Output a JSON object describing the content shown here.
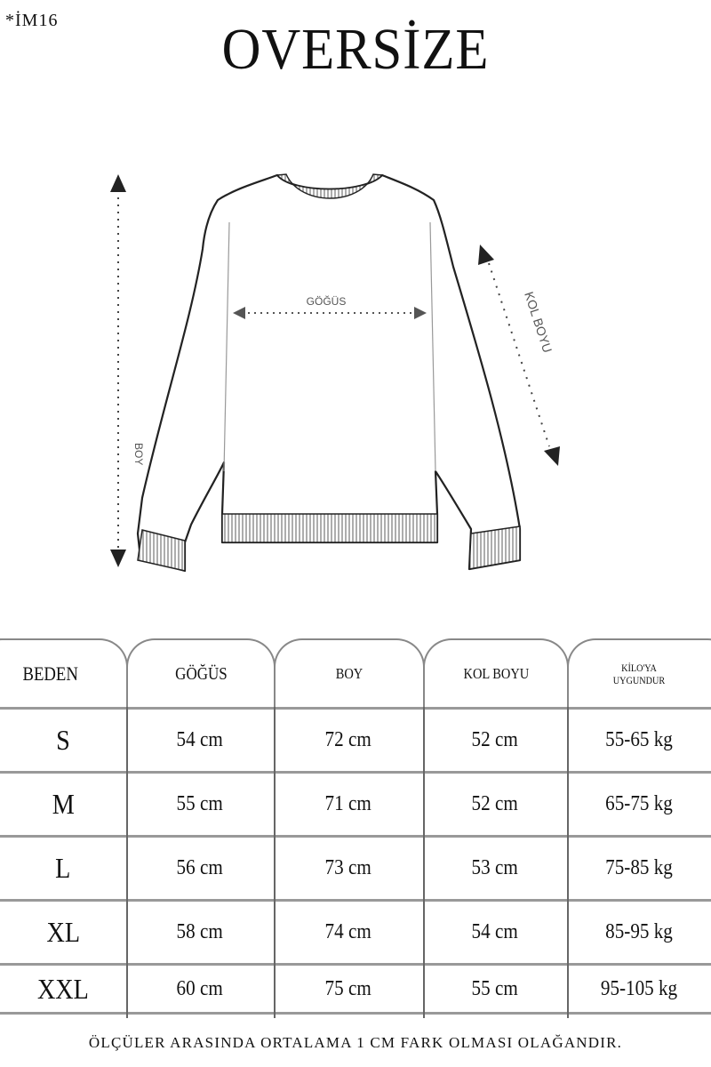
{
  "product_code": "*İM16",
  "title": "OVERSİZE",
  "diagram": {
    "chest_label": "GÖĞÜS",
    "length_label": "BOY",
    "sleeve_label": "KOL BOYU"
  },
  "table": {
    "headers": [
      "BEDEN",
      "GÖĞÜS",
      "BOY",
      "KOL BOYU",
      "KİLO'YA UYGUNDUR"
    ],
    "rows": [
      [
        "S",
        "54 cm",
        "72 cm",
        "52  cm",
        "55-65 kg"
      ],
      [
        "M",
        "55 cm",
        "71 cm",
        "52 cm",
        "65-75 kg"
      ],
      [
        "L",
        "56 cm",
        "73 cm",
        "53 cm",
        "75-85 kg"
      ],
      [
        "XL",
        "58 cm",
        "74 cm",
        "54 cm",
        "85-95 kg"
      ],
      [
        "XXL",
        "60 cm",
        "75 cm",
        "55 cm",
        "95-105 kg"
      ]
    ]
  },
  "footer_note": "ÖLÇÜLER ARASINDA ORTALAMA 1 CM FARK OLMASI OLAĞANDIR."
}
